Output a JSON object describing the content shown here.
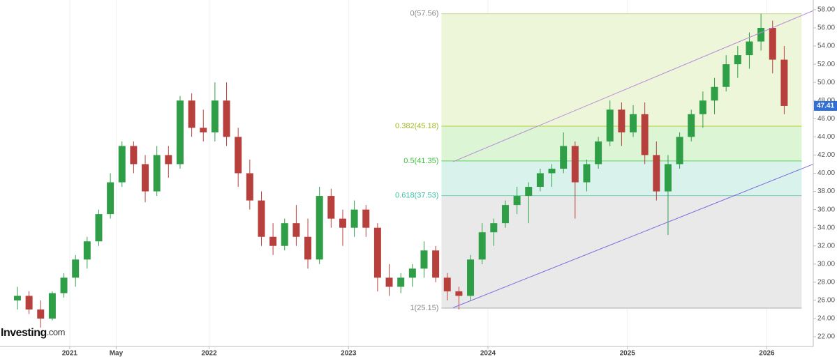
{
  "chart_data": {
    "type": "candlestick",
    "brand": "Investing",
    "brand_suffix": ".com",
    "up_color": "#2e9e47",
    "down_color": "#b8403c",
    "xlim": [
      "2020-07",
      "2026-05"
    ],
    "ylim": [
      20.93,
      59.07
    ],
    "xticks": [
      {
        "value": "2021-01",
        "label": "2021"
      },
      {
        "value": "2021-05",
        "label": "May"
      },
      {
        "value": "2022-01",
        "label": "2022"
      },
      {
        "value": "2023-01",
        "label": "2023"
      },
      {
        "value": "2024-01",
        "label": "2024"
      },
      {
        "value": "2025-01",
        "label": "2025"
      },
      {
        "value": "2026-01",
        "label": "2026"
      }
    ],
    "yticks": [
      {
        "value": 22,
        "label": "22.00"
      },
      {
        "value": 24,
        "label": "24.00"
      },
      {
        "value": 26,
        "label": "26.00"
      },
      {
        "value": 28,
        "label": "28.00"
      },
      {
        "value": 30,
        "label": "30.00"
      },
      {
        "value": 32,
        "label": "32.00"
      },
      {
        "value": 34,
        "label": "34.00"
      },
      {
        "value": 36,
        "label": "36.00"
      },
      {
        "value": 38,
        "label": "38.00"
      },
      {
        "value": 40,
        "label": "40.00"
      },
      {
        "value": 42,
        "label": "42.00"
      },
      {
        "value": 44,
        "label": "44.00"
      },
      {
        "value": 46,
        "label": "46.00"
      },
      {
        "value": 48,
        "label": "48.00"
      },
      {
        "value": 50,
        "label": "50.00"
      },
      {
        "value": 52,
        "label": "52.00"
      },
      {
        "value": 54,
        "label": "54.00"
      },
      {
        "value": 56,
        "label": "56.00"
      },
      {
        "value": 58,
        "label": "58.00"
      }
    ],
    "last_price": 47.41,
    "last_price_color": "#2f6fd6",
    "candles": {
      "x": [
        "2020-08",
        "2020-09",
        "2020-10",
        "2020-11",
        "2020-12",
        "2021-01",
        "2021-02",
        "2021-03",
        "2021-04",
        "2021-05",
        "2021-06",
        "2021-07",
        "2021-08",
        "2021-09",
        "2021-10",
        "2021-11",
        "2021-12",
        "2022-01",
        "2022-02",
        "2022-03",
        "2022-04",
        "2022-05",
        "2022-06",
        "2022-07",
        "2022-08",
        "2022-09",
        "2022-10",
        "2022-11",
        "2022-12",
        "2023-01",
        "2023-02",
        "2023-03",
        "2023-04",
        "2023-05",
        "2023-06",
        "2023-07",
        "2023-08",
        "2023-09",
        "2023-10",
        "2023-11",
        "2023-12",
        "2024-01",
        "2024-02",
        "2024-03",
        "2024-04",
        "2024-05",
        "2024-06",
        "2024-07",
        "2024-08",
        "2024-09",
        "2024-10",
        "2024-11",
        "2024-12",
        "2025-01",
        "2025-02",
        "2025-03",
        "2025-04",
        "2025-05",
        "2025-06",
        "2025-07",
        "2025-08",
        "2025-09",
        "2025-10",
        "2025-11",
        "2025-12",
        "2026-01",
        "2026-02"
      ],
      "open": [
        26,
        26.5,
        25,
        24,
        26.8,
        28.5,
        30.5,
        32.5,
        35.5,
        39,
        43,
        41,
        38,
        42,
        41,
        48,
        45,
        44.5,
        48,
        44,
        40,
        37,
        33,
        32,
        34.5,
        33,
        30.5,
        37.5,
        35,
        34,
        36,
        34,
        28.5,
        27.5,
        28.5,
        29.5,
        31.5,
        28.5,
        27,
        26.5,
        30.5,
        33.5,
        34.5,
        36.5,
        37.5,
        38.5,
        40,
        40.5,
        43,
        39,
        41,
        43.5,
        47,
        44.5,
        46.5,
        42,
        38,
        41,
        44,
        46.5,
        48,
        49.5,
        52,
        53,
        54.5,
        56,
        52.5
      ],
      "high": [
        27.5,
        27,
        26,
        27,
        29,
        31,
        33,
        36,
        40,
        43.5,
        43.5,
        42,
        43,
        43,
        48.5,
        48.8,
        47,
        50,
        50,
        45,
        41.5,
        38,
        34.5,
        35,
        36.5,
        35,
        38.5,
        38.3,
        36,
        37,
        36.5,
        34.5,
        30,
        29,
        30,
        32.5,
        32,
        29,
        27.5,
        31,
        34.5,
        35,
        37,
        38.5,
        39,
        40.5,
        41,
        44.5,
        43.5,
        41.5,
        44,
        48,
        47.8,
        47.5,
        47.8,
        43.5,
        42,
        44.5,
        47,
        49,
        50.5,
        53,
        54,
        55.5,
        57.56,
        56.8,
        54
      ],
      "low": [
        25,
        24.5,
        23,
        23.8,
        26.3,
        27.5,
        29.5,
        32,
        35,
        38.5,
        40,
        36.8,
        37.5,
        39.5,
        40.5,
        44,
        43.5,
        43.5,
        43,
        38.5,
        36,
        32,
        31,
        31.5,
        32,
        29.5,
        30,
        34,
        32,
        33,
        33,
        27,
        26.5,
        26.8,
        27.5,
        28.5,
        28,
        26,
        25,
        26,
        30,
        32,
        34,
        35.5,
        34.5,
        38,
        38.5,
        40,
        35,
        38,
        40.5,
        43,
        43,
        44,
        41,
        37,
        33.2,
        40.5,
        43.5,
        45,
        46.5,
        49,
        50.5,
        51.5,
        53.5,
        51,
        46.5
      ],
      "close": [
        26.5,
        25,
        24,
        26.8,
        28.5,
        30.5,
        32.5,
        35.5,
        39,
        43,
        41,
        38,
        42,
        41,
        48,
        45,
        44.5,
        48,
        44,
        40,
        37,
        33,
        32,
        34.5,
        33,
        30.5,
        37.5,
        35,
        34,
        36,
        34,
        28.5,
        27.5,
        28.5,
        29.5,
        31.5,
        28.5,
        27,
        26.5,
        30.5,
        33.5,
        34.5,
        36.5,
        37.5,
        38.5,
        40,
        40.5,
        43,
        39,
        41,
        43.5,
        47,
        44.5,
        46.5,
        42,
        38,
        41,
        44,
        46.5,
        48,
        49.5,
        52,
        53,
        54.5,
        56,
        52.5,
        47.41
      ]
    },
    "fib": {
      "x": [
        "2023-09",
        "2026-04"
      ],
      "levels": [
        {
          "value": 57.56,
          "label": "0(57.56)",
          "color": "#c8d98a"
        },
        {
          "value": 45.18,
          "label": "0.382(45.18)",
          "color": "#b5d33a"
        },
        {
          "value": 41.35,
          "label": "0.5(41.35)",
          "color": "#5fcf5f"
        },
        {
          "value": 37.53,
          "label": "0.618(37.53)",
          "color": "#6fd3b8"
        },
        {
          "value": 25.15,
          "label": "1(25.15)",
          "color": "#a9a9a9"
        }
      ],
      "label_colors": [
        "#888888",
        "#a3b92a",
        "#3fbf3f",
        "#3fbfa0",
        "#888888"
      ],
      "zone_colors": [
        "#eef6da",
        "#dcf5d4",
        "#d9f3ec",
        "#e9e9e9"
      ]
    },
    "trendlines": [
      {
        "x": [
          "2023-10",
          "2026-05"
        ],
        "y": [
          41.27,
          57.9
        ],
        "color": "#b58ad9"
      },
      {
        "x": [
          "2023-10",
          "2026-05"
        ],
        "y": [
          25.2,
          41.0
        ],
        "color": "#7d6be0"
      }
    ]
  }
}
